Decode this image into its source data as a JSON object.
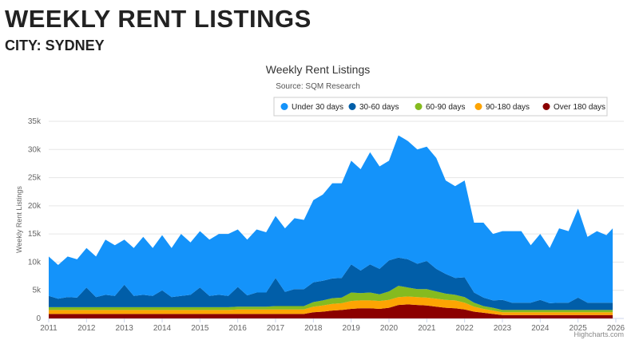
{
  "page": {
    "title": "WEEKLY RENT LISTINGS",
    "subtitle": "CITY: SYDNEY"
  },
  "chart_data": {
    "type": "area",
    "stacked": true,
    "title": "Weekly Rent Listings",
    "subtitle": "Source: SQM Research",
    "ylabel": "Weekly Rent Listings",
    "xlabel": "",
    "ylim": [
      0,
      35000
    ],
    "xlim": [
      "2011-01",
      "2026-01"
    ],
    "y_ticks": [
      "0",
      "5k",
      "10k",
      "15k",
      "20k",
      "25k",
      "30k",
      "35k"
    ],
    "x_ticks": [
      "2011",
      "2012",
      "2013",
      "2014",
      "2015",
      "2016",
      "2017",
      "2018",
      "2019",
      "2020",
      "2021",
      "2022",
      "2023",
      "2024",
      "2025",
      "2026"
    ],
    "grid": true,
    "legend_position": "top-right",
    "credit": "Highcharts.com",
    "x": [
      "2011-01",
      "2011-04",
      "2011-07",
      "2011-10",
      "2012-01",
      "2012-04",
      "2012-07",
      "2012-10",
      "2013-01",
      "2013-04",
      "2013-07",
      "2013-10",
      "2014-01",
      "2014-04",
      "2014-07",
      "2014-10",
      "2015-01",
      "2015-04",
      "2015-07",
      "2015-10",
      "2016-01",
      "2016-04",
      "2016-07",
      "2016-10",
      "2017-01",
      "2017-04",
      "2017-07",
      "2017-10",
      "2018-01",
      "2018-04",
      "2018-07",
      "2018-10",
      "2019-01",
      "2019-04",
      "2019-07",
      "2019-10",
      "2020-01",
      "2020-04",
      "2020-07",
      "2020-10",
      "2021-01",
      "2021-04",
      "2021-07",
      "2021-10",
      "2022-01",
      "2022-04",
      "2022-07",
      "2022-10",
      "2023-01",
      "2023-04",
      "2023-07",
      "2023-10",
      "2024-01",
      "2024-04",
      "2024-07",
      "2024-10",
      "2025-01",
      "2025-04",
      "2025-07",
      "2025-10",
      "2025-12"
    ],
    "series": [
      {
        "name": "Under 30 days",
        "color": "#1493fa",
        "values": [
          7000,
          6000,
          7200,
          6800,
          7000,
          7200,
          9800,
          9000,
          8000,
          8500,
          10300,
          8500,
          9800,
          8700,
          11000,
          9300,
          10000,
          10000,
          10800,
          11000,
          10200,
          9900,
          11200,
          10700,
          11000,
          11300,
          12600,
          12300,
          14600,
          15300,
          16900,
          16800,
          18400,
          18000,
          19900,
          18200,
          17700,
          21700,
          21000,
          20300,
          20300,
          19700,
          16600,
          16300,
          17200,
          12400,
          13300,
          11800,
          12200,
          12700,
          12700,
          10200,
          11700,
          9800,
          13200,
          12700,
          15800,
          11700,
          12700,
          12000,
          13200
        ]
      },
      {
        "name": "30-60 days",
        "color": "#015ea8",
        "values": [
          2000,
          1500,
          1800,
          1700,
          3500,
          1800,
          2200,
          2000,
          4000,
          2000,
          2200,
          2000,
          3000,
          1800,
          2000,
          2200,
          3500,
          2000,
          2200,
          2000,
          3500,
          2000,
          2500,
          2500,
          5000,
          2500,
          3000,
          3000,
          3500,
          3500,
          3500,
          3500,
          5000,
          4000,
          5000,
          4500,
          5500,
          5000,
          5000,
          4500,
          5000,
          4000,
          3500,
          3000,
          3500,
          1800,
          1500,
          1300,
          1800,
          1300,
          1300,
          1300,
          1800,
          1200,
          1300,
          1300,
          2200,
          1300,
          1300,
          1300,
          1300
        ]
      },
      {
        "name": "60-90 days",
        "color": "#85bb1f",
        "values": [
          500,
          500,
          500,
          500,
          500,
          500,
          500,
          500,
          500,
          500,
          500,
          500,
          500,
          500,
          500,
          500,
          500,
          500,
          500,
          500,
          500,
          500,
          500,
          500,
          600,
          600,
          600,
          600,
          800,
          900,
          1000,
          1000,
          1500,
          1300,
          1400,
          1200,
          1500,
          2000,
          1600,
          1400,
          1500,
          1300,
          1100,
          1000,
          1000,
          700,
          500,
          500,
          400,
          400,
          400,
          400,
          400,
          400,
          400,
          400,
          400,
          400,
          400,
          400,
          400
        ]
      },
      {
        "name": "90-180 days",
        "color": "#fda403",
        "values": [
          700,
          700,
          700,
          700,
          700,
          700,
          700,
          700,
          700,
          700,
          700,
          700,
          700,
          700,
          700,
          700,
          700,
          700,
          700,
          700,
          800,
          800,
          800,
          800,
          800,
          800,
          800,
          800,
          1000,
          1100,
          1200,
          1200,
          1400,
          1400,
          1400,
          1400,
          1400,
          1400,
          1400,
          1400,
          1400,
          1400,
          1400,
          1400,
          1200,
          900,
          700,
          600,
          500,
          500,
          500,
          500,
          500,
          500,
          500,
          500,
          500,
          500,
          500,
          500,
          500
        ]
      },
      {
        "name": "Over 180 days",
        "color": "#8b0000",
        "values": [
          800,
          800,
          800,
          800,
          800,
          800,
          800,
          800,
          800,
          800,
          800,
          800,
          800,
          800,
          800,
          800,
          800,
          800,
          800,
          800,
          800,
          800,
          800,
          800,
          800,
          800,
          800,
          800,
          1100,
          1200,
          1400,
          1500,
          1700,
          1800,
          1800,
          1700,
          1900,
          2400,
          2500,
          2400,
          2300,
          2100,
          1900,
          1800,
          1600,
          1200,
          1000,
          800,
          600,
          600,
          600,
          600,
          600,
          600,
          600,
          600,
          600,
          600,
          600,
          600,
          600
        ]
      }
    ]
  }
}
